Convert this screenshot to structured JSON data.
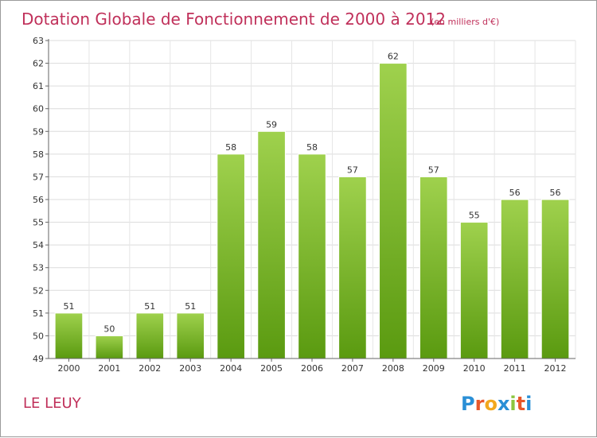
{
  "chart_data": {
    "type": "bar",
    "title": "Dotation Globale de Fonctionnement de 2000 à 2012",
    "subtitle": "(en milliers d'€)",
    "categories": [
      "2000",
      "2001",
      "2002",
      "2003",
      "2004",
      "2005",
      "2006",
      "2007",
      "2008",
      "2009",
      "2010",
      "2011",
      "2012"
    ],
    "values": [
      51,
      50,
      51,
      51,
      58,
      59,
      58,
      57,
      62,
      57,
      55,
      56,
      56
    ],
    "ylim": [
      49,
      63
    ],
    "yticks": [
      49,
      50,
      51,
      52,
      53,
      54,
      55,
      56,
      57,
      58,
      59,
      60,
      61,
      62,
      63
    ],
    "grid": true,
    "bar_color_top": "#9fd14d",
    "bar_color_bottom": "#5a9a10"
  },
  "footer": {
    "commune": "LE LEUY",
    "logo_letters": [
      "P",
      "r",
      "o",
      "x",
      "i",
      "t",
      "i"
    ],
    "logo_colors": [
      "#2a8fd6",
      "#e8572a",
      "#f2a81e",
      "#2a8fd6",
      "#8cc63f",
      "#e8572a",
      "#2a8fd6"
    ]
  }
}
